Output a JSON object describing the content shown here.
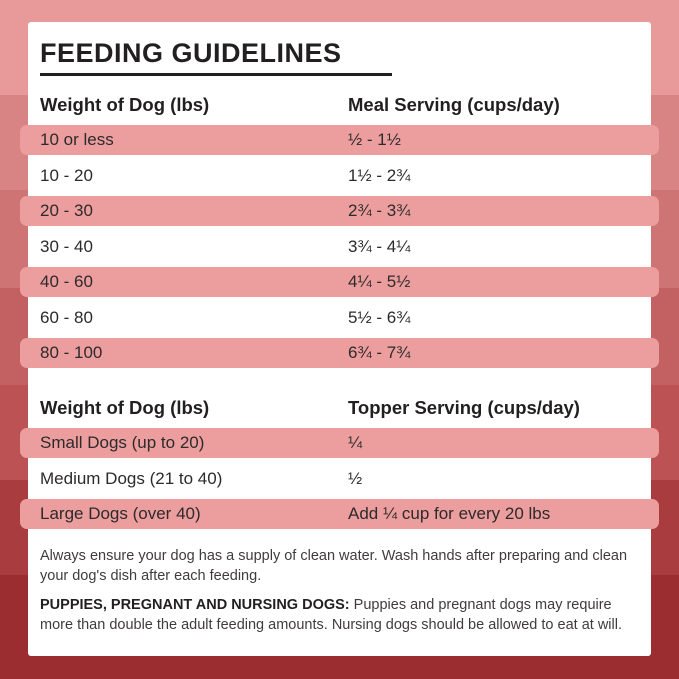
{
  "title": "FEEDING GUIDELINES",
  "meal_table": {
    "col1_header": "Weight of Dog (lbs)",
    "col2_header": "Meal Serving (cups/day)",
    "rows": [
      {
        "weight": "10 or less",
        "serving": "½ - 1½"
      },
      {
        "weight": "10 - 20",
        "serving": "1½ - 2¾"
      },
      {
        "weight": "20 - 30",
        "serving": "2¾ - 3¾"
      },
      {
        "weight": "30 - 40",
        "serving": "3¾ - 4¼"
      },
      {
        "weight": "40 - 60",
        "serving": "4¼ - 5½"
      },
      {
        "weight": "60 - 80",
        "serving": "5½ - 6¾"
      },
      {
        "weight": "80 - 100",
        "serving": "6¾ - 7¾"
      }
    ]
  },
  "topper_table": {
    "col1_header": "Weight of Dog (lbs)",
    "col2_header": "Topper Serving (cups/day)",
    "rows": [
      {
        "weight": "Small Dogs (up to 20)",
        "serving": "¼"
      },
      {
        "weight": "Medium Dogs (21 to 40)",
        "serving": "½"
      },
      {
        "weight": "Large Dogs (over 40)",
        "serving": "Add ¼ cup for every 20 lbs"
      }
    ]
  },
  "notes": {
    "water_note": "Always ensure your dog has a supply of clean water. Wash hands after preparing and clean your dog's dish after each feeding.",
    "puppies_label": "PUPPIES, PREGNANT AND NURSING DOGS:",
    "puppies_note": " Puppies and pregnant dogs may require more than double the adult feeding amounts. Nursing dogs should be allowed to eat at will."
  },
  "colors": {
    "row_highlight": "#ec9e9f",
    "card_bg": "#ffffff",
    "title_text": "#221f20",
    "row_text": "#2d2a2b",
    "note_text": "#403c3d",
    "background_bands": [
      "#e89a9b",
      "#d88485",
      "#ce7475",
      "#c36062",
      "#bc5254",
      "#a93c3f",
      "#9b2c30"
    ]
  }
}
